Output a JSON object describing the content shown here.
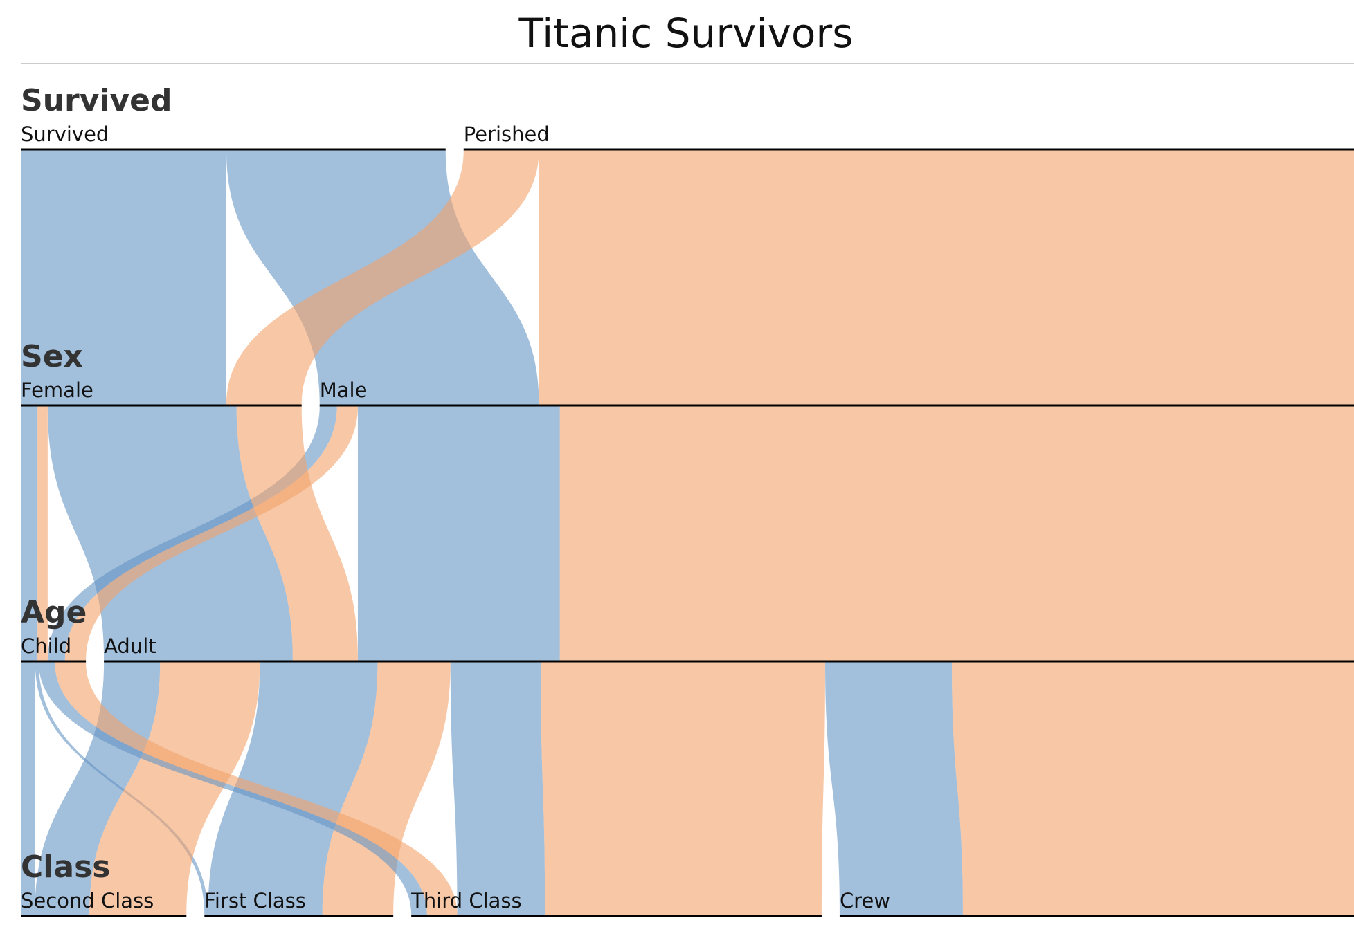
{
  "chart_data": {
    "type": "parallel-sets",
    "title": "Titanic Survivors",
    "colors": {
      "Survived": "#6494c4",
      "Perished": "#f2a26a"
    },
    "dimensions": [
      {
        "name": "Survived",
        "categories": [
          "Survived",
          "Perished"
        ]
      },
      {
        "name": "Sex",
        "categories": [
          "Female",
          "Male"
        ]
      },
      {
        "name": "Age",
        "categories": [
          "Child",
          "Adult"
        ]
      },
      {
        "name": "Class",
        "categories": [
          "Second Class",
          "First Class",
          "Third Class",
          "Crew"
        ]
      }
    ],
    "records": [
      {
        "Class": "First Class",
        "Age": "Child",
        "Sex": "Male",
        "Survived": "Survived",
        "count": 5
      },
      {
        "Class": "First Class",
        "Age": "Child",
        "Sex": "Female",
        "Survived": "Survived",
        "count": 1
      },
      {
        "Class": "First Class",
        "Age": "Adult",
        "Sex": "Male",
        "Survived": "Survived",
        "count": 57
      },
      {
        "Class": "First Class",
        "Age": "Adult",
        "Sex": "Male",
        "Survived": "Perished",
        "count": 118
      },
      {
        "Class": "First Class",
        "Age": "Adult",
        "Sex": "Female",
        "Survived": "Survived",
        "count": 140
      },
      {
        "Class": "First Class",
        "Age": "Adult",
        "Sex": "Female",
        "Survived": "Perished",
        "count": 4
      },
      {
        "Class": "Second Class",
        "Age": "Child",
        "Sex": "Male",
        "Survived": "Survived",
        "count": 11
      },
      {
        "Class": "Second Class",
        "Age": "Child",
        "Sex": "Female",
        "Survived": "Survived",
        "count": 13
      },
      {
        "Class": "Second Class",
        "Age": "Adult",
        "Sex": "Male",
        "Survived": "Survived",
        "count": 14
      },
      {
        "Class": "Second Class",
        "Age": "Adult",
        "Sex": "Male",
        "Survived": "Perished",
        "count": 154
      },
      {
        "Class": "Second Class",
        "Age": "Adult",
        "Sex": "Female",
        "Survived": "Survived",
        "count": 80
      },
      {
        "Class": "Second Class",
        "Age": "Adult",
        "Sex": "Female",
        "Survived": "Perished",
        "count": 13
      },
      {
        "Class": "Third Class",
        "Age": "Child",
        "Sex": "Male",
        "Survived": "Survived",
        "count": 13
      },
      {
        "Class": "Third Class",
        "Age": "Child",
        "Sex": "Male",
        "Survived": "Perished",
        "count": 35
      },
      {
        "Class": "Third Class",
        "Age": "Child",
        "Sex": "Female",
        "Survived": "Survived",
        "count": 14
      },
      {
        "Class": "Third Class",
        "Age": "Child",
        "Sex": "Female",
        "Survived": "Perished",
        "count": 17
      },
      {
        "Class": "Third Class",
        "Age": "Adult",
        "Sex": "Male",
        "Survived": "Survived",
        "count": 75
      },
      {
        "Class": "Third Class",
        "Age": "Adult",
        "Sex": "Male",
        "Survived": "Perished",
        "count": 387
      },
      {
        "Class": "Third Class",
        "Age": "Adult",
        "Sex": "Female",
        "Survived": "Survived",
        "count": 76
      },
      {
        "Class": "Third Class",
        "Age": "Adult",
        "Sex": "Female",
        "Survived": "Perished",
        "count": 89
      },
      {
        "Class": "Crew",
        "Age": "Adult",
        "Sex": "Male",
        "Survived": "Survived",
        "count": 192
      },
      {
        "Class": "Crew",
        "Age": "Adult",
        "Sex": "Male",
        "Survived": "Perished",
        "count": 670
      },
      {
        "Class": "Crew",
        "Age": "Adult",
        "Sex": "Female",
        "Survived": "Survived",
        "count": 20
      },
      {
        "Class": "Crew",
        "Age": "Adult",
        "Sex": "Female",
        "Survived": "Perished",
        "count": 3
      }
    ]
  }
}
